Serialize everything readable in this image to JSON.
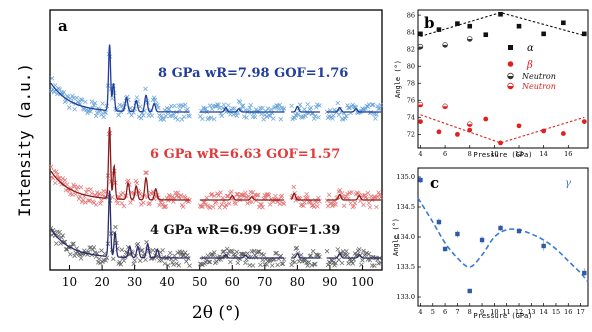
{
  "colors": {
    "blue_line": "#1f3d99",
    "blue_cross": "#5b9bd5",
    "red_line": "#8b1a1a",
    "red_cross": "#e06666",
    "black_line": "#2b2b6b",
    "black_cross": "#555555",
    "alpha": "#111111",
    "beta": "#e02020",
    "gamma_fit": "#3a7bd5"
  },
  "chart_data": [
    {
      "panel": "a",
      "type": "line",
      "xlabel": "2θ (°)",
      "ylabel": "Intensity (a.u.)",
      "xlim": [
        4,
        106
      ],
      "xticks": [
        10,
        20,
        30,
        40,
        50,
        60,
        70,
        80,
        90,
        100
      ],
      "gaps": [
        [
          47,
          50
        ],
        [
          76,
          78
        ],
        [
          87,
          89
        ]
      ],
      "series": [
        {
          "name": "8 GPa wR=7.98 GOF=1.76",
          "offset": 2.0,
          "peaks": [
            [
              22.3,
              1.2
            ],
            [
              23.5,
              0.5
            ],
            [
              27.5,
              0.25
            ],
            [
              30.5,
              0.2
            ],
            [
              33.5,
              0.3
            ],
            [
              36,
              0.15
            ],
            [
              58,
              0.08
            ],
            [
              62,
              0.06
            ],
            [
              80,
              0.1
            ],
            [
              93,
              0.08
            ],
            [
              98,
              0.06
            ]
          ]
        },
        {
          "name": "6 GPa wR=6.63 GOF=1.57",
          "offset": 1.0,
          "peaks": [
            [
              22.3,
              1.3
            ],
            [
              23.7,
              0.6
            ],
            [
              28,
              0.3
            ],
            [
              30.5,
              0.25
            ],
            [
              33.5,
              0.4
            ],
            [
              36.5,
              0.2
            ],
            [
              60,
              0.08
            ],
            [
              66,
              0.06
            ],
            [
              79,
              0.12
            ],
            [
              93,
              0.1
            ],
            [
              99,
              0.08
            ]
          ]
        },
        {
          "name": "4 GPa wR=6.99 GOF=1.39",
          "offset": 0.0,
          "peaks": [
            [
              22.3,
              1.2
            ],
            [
              24,
              0.45
            ],
            [
              28.5,
              0.2
            ],
            [
              31,
              0.2
            ],
            [
              34,
              0.25
            ],
            [
              37,
              0.15
            ],
            [
              58,
              0.06
            ],
            [
              64,
              0.05
            ],
            [
              80,
              0.08
            ],
            [
              93,
              0.08
            ],
            [
              99,
              0.06
            ]
          ]
        }
      ]
    },
    {
      "panel": "b",
      "type": "scatter",
      "xlabel": "Pressure (GPa)",
      "ylabel": "Angle (°)",
      "xlim": [
        3.8,
        17.6
      ],
      "ylim": [
        70.4,
        86.6
      ],
      "xticks": [
        4,
        6,
        8,
        10,
        12,
        14,
        16
      ],
      "yticks": [
        72,
        74,
        76,
        78,
        80,
        82,
        84,
        86
      ],
      "legend": [
        "α",
        "β",
        "Neutron",
        "Neutron"
      ],
      "alpha": {
        "x": [
          4,
          5.5,
          7,
          8,
          9.3,
          10.5,
          12,
          14,
          15.6,
          17.3
        ],
        "y": [
          83.8,
          84.3,
          85.0,
          84.7,
          83.7,
          86.1,
          84.7,
          83.8,
          85.1,
          83.8
        ]
      },
      "alpha_neutron": {
        "x": [
          4,
          6,
          8
        ],
        "y": [
          82.3,
          82.5,
          83.2
        ]
      },
      "beta": {
        "x": [
          4,
          5.5,
          7,
          8,
          9.3,
          10.5,
          12,
          14,
          15.6,
          17.3
        ],
        "y": [
          73.5,
          72.3,
          72.0,
          72.5,
          73.8,
          71.0,
          73.0,
          72.4,
          72.1,
          73.5
        ]
      },
      "beta_neutron": {
        "x": [
          4,
          6,
          8
        ],
        "y": [
          75.5,
          75.3,
          73.2
        ]
      },
      "trend_alpha": {
        "x": [
          4,
          10.5,
          17.3
        ],
        "y": [
          83.5,
          86.3,
          83.6
        ]
      },
      "trend_beta": {
        "x": [
          4,
          10.5,
          17.3
        ],
        "y": [
          74.3,
          71.0,
          74.0
        ]
      }
    },
    {
      "panel": "c",
      "type": "scatter",
      "xlabel": "Pressure (GPa)",
      "ylabel": "Angle (°)",
      "legend": [
        "γ"
      ],
      "xlim": [
        3.8,
        17.6
      ],
      "ylim": [
        132.85,
        135.15
      ],
      "xticks": [
        4,
        5,
        6,
        7,
        8,
        9,
        10,
        11,
        12,
        13,
        14,
        15,
        16,
        17
      ],
      "yticks": [
        133.0,
        133.5,
        134.0,
        134.5,
        135.0
      ],
      "gamma": {
        "x": [
          4,
          5.5,
          6,
          7,
          8,
          9,
          10.5,
          12,
          14,
          17.3
        ],
        "y": [
          134.95,
          134.25,
          133.8,
          134.05,
          133.1,
          133.95,
          134.15,
          134.1,
          133.85,
          133.4
        ],
        "err": [
          0.05,
          0.06,
          0.04,
          0.06,
          0.04,
          0.06,
          0.05,
          0.05,
          0.08,
          0.08
        ]
      },
      "fit": {
        "x": [
          3.8,
          5,
          6,
          7,
          8,
          9,
          10,
          11,
          12,
          13,
          14,
          15,
          16,
          17,
          17.6
        ],
        "y": [
          134.65,
          134.25,
          133.9,
          133.65,
          133.5,
          133.7,
          134.0,
          134.12,
          134.12,
          134.05,
          133.95,
          133.8,
          133.6,
          133.4,
          133.25
        ]
      }
    }
  ]
}
